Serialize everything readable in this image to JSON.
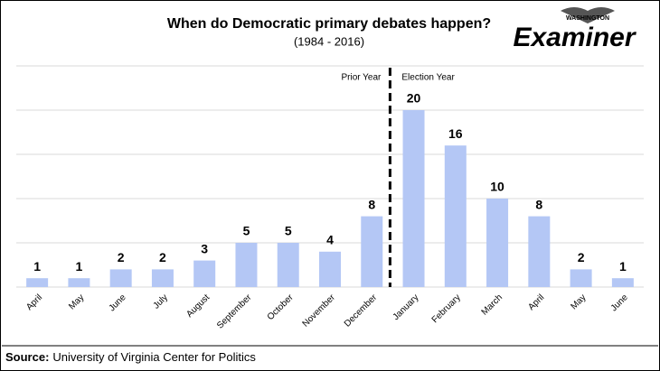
{
  "chart_data": {
    "type": "bar",
    "title": "When do Democratic primary debates happen?",
    "subtitle": "(1984 - 2016)",
    "categories": [
      "April",
      "May",
      "June",
      "July",
      "August",
      "September",
      "October",
      "November",
      "December",
      "January",
      "February",
      "March",
      "April",
      "May",
      "June"
    ],
    "values": [
      1,
      1,
      2,
      2,
      3,
      5,
      5,
      4,
      8,
      20,
      16,
      10,
      8,
      2,
      1
    ],
    "color": "#b4c7f5",
    "ylim": [
      0,
      25
    ],
    "yticks": [
      0,
      5,
      10,
      15,
      20,
      25
    ],
    "grid": true,
    "annotations": [
      "Prior Year",
      "Election Year"
    ]
  },
  "logo": {
    "top": "WASHINGTON",
    "name": "Examiner"
  },
  "source": {
    "label": "Source:",
    "text": "University of Virginia Center for Politics"
  }
}
